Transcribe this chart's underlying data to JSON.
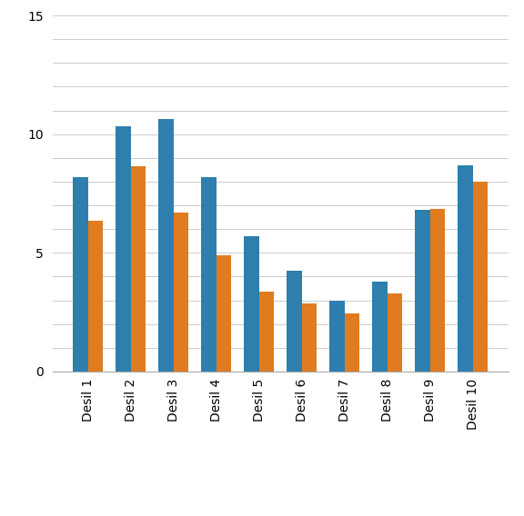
{
  "categories": [
    "Desil 1",
    "Desil 2",
    "Desil 3",
    "Desil 4",
    "Desil 5",
    "Desil 6",
    "Desil 7",
    "Desil 8",
    "Desil 9",
    "Desil 10"
  ],
  "median_samlet": [
    8.2,
    10.35,
    10.65,
    8.2,
    5.7,
    4.25,
    3.0,
    3.8,
    6.8,
    8.7
  ],
  "median_etter_skatt": [
    6.35,
    8.65,
    6.7,
    4.9,
    3.35,
    2.85,
    2.45,
    3.3,
    6.85,
    8.0
  ],
  "color_samlet": "#2e7fad",
  "color_etter_skatt": "#e07b20",
  "ylim": [
    0,
    15
  ],
  "ytick_labels": [
    0,
    5,
    10,
    15
  ],
  "ytick_grid_all": [
    0,
    1,
    2,
    3,
    4,
    5,
    6,
    7,
    8,
    9,
    10,
    11,
    12,
    13,
    14,
    15
  ],
  "background_color": "#ffffff",
  "bar_width": 0.35,
  "grid_color": "#cccccc"
}
